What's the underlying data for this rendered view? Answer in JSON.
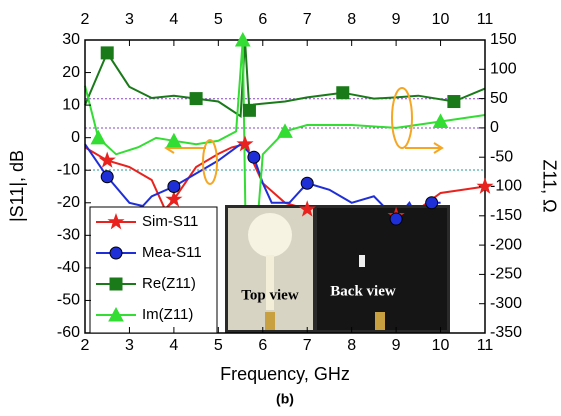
{
  "chart_data": {
    "type": "line",
    "xlabel": "Frequency, GHz",
    "ylabel": "|S11|, dB",
    "y2label": "Z11, Ω",
    "caption": "(b)",
    "xlim": [
      2,
      11
    ],
    "xticks": [
      2,
      3,
      4,
      5,
      6,
      7,
      8,
      9,
      10,
      11
    ],
    "ylim": [
      -60,
      30
    ],
    "yticks": [
      -60,
      -50,
      -40,
      -30,
      -20,
      -10,
      0,
      10,
      20,
      30
    ],
    "y2lim": [
      -350,
      150
    ],
    "y2ticks": [
      -350,
      -300,
      -250,
      -200,
      -150,
      -100,
      -50,
      0,
      50,
      100,
      150
    ],
    "inset_labels": [
      "Top view",
      "Back view"
    ],
    "series": [
      {
        "name": "Sim-S11",
        "color": "#e8231f",
        "marker": "star",
        "x": [
          2,
          2.5,
          3,
          3.5,
          3.8,
          4,
          4.5,
          5,
          5.3,
          5.6,
          5.8,
          6,
          6.5,
          7,
          7.5,
          8,
          8.5,
          9,
          9.5,
          10,
          10.5,
          11
        ],
        "values": [
          -3,
          -7,
          -9,
          -13,
          -22,
          -19,
          -9,
          -5,
          -3,
          -2,
          -8,
          -14,
          -20,
          -22,
          -23,
          -23,
          -24,
          -24,
          -22,
          -17,
          -16,
          -15
        ]
      },
      {
        "name": "Mea-S11",
        "color": "#1f2fd8",
        "marker": "circle",
        "x": [
          2,
          2.5,
          3,
          3.3,
          3.5,
          4,
          4.5,
          5,
          5.5,
          5.8,
          6,
          6.2,
          6.6,
          7,
          7.5,
          8,
          8.5,
          9,
          9.3,
          9.5,
          9.7,
          9.8,
          10
        ],
        "values": [
          -2,
          -12,
          -20,
          -21,
          -18,
          -15,
          -11,
          -7,
          -2,
          -6,
          -14,
          -20,
          -20,
          -14,
          -16,
          -20,
          -18,
          -25,
          -20,
          -25,
          -35,
          -20,
          -20
        ]
      },
      {
        "name": "Re(Z11)",
        "color": "#1a7a1a",
        "marker": "square",
        "axis": "y2",
        "x": [
          2,
          2.5,
          3,
          3.5,
          4,
          4.5,
          5,
          5.5,
          5.6,
          5.7,
          5.8,
          6.5,
          7,
          7.8,
          8.5,
          9,
          9.5,
          10.3,
          11
        ],
        "values": [
          39,
          128,
          70,
          51,
          55,
          50,
          45,
          20,
          150,
          30,
          40,
          45,
          52,
          60,
          50,
          52,
          55,
          45,
          67
        ]
      },
      {
        "name": "Im(Z11)",
        "color": "#33dd33",
        "marker": "triangle",
        "axis": "y2",
        "x": [
          2,
          2.3,
          2.7,
          3.2,
          3.6,
          4,
          4.5,
          5,
          5.4,
          5.55,
          5.65,
          5.8,
          6,
          6.5,
          7,
          8,
          9,
          10,
          11
        ],
        "values": [
          72,
          -17,
          -45,
          -33,
          -17,
          -22,
          -28,
          -22,
          -6,
          150,
          -350,
          -239,
          -45,
          -6,
          5,
          5,
          0,
          11,
          22
        ]
      }
    ]
  }
}
